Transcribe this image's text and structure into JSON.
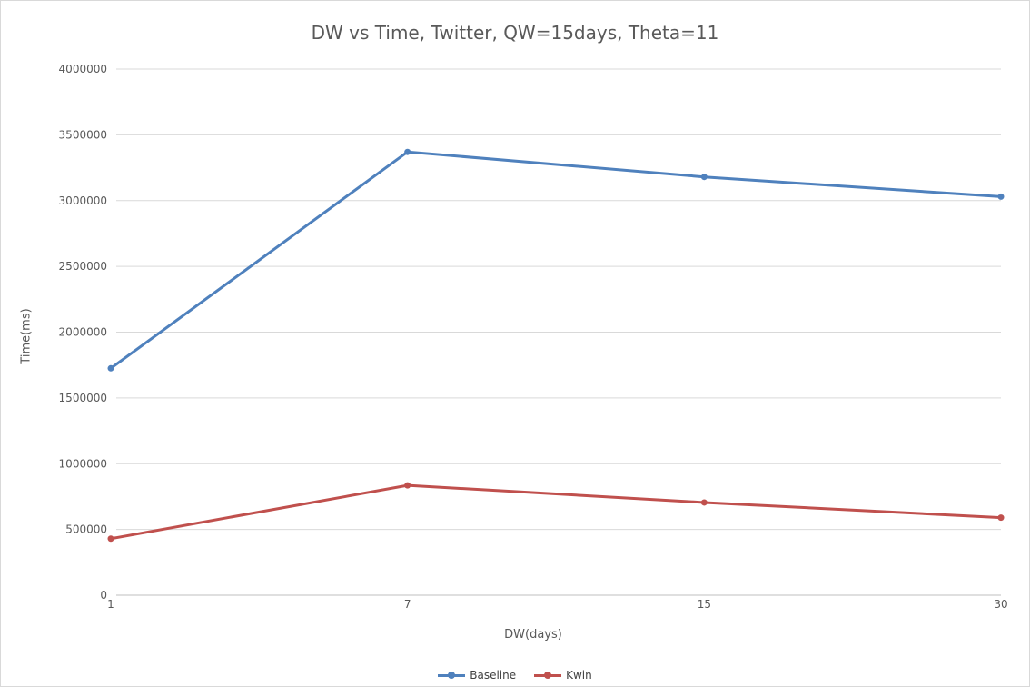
{
  "chart_data": {
    "type": "line",
    "title": "DW vs Time, Twitter, QW=15days, Theta=11",
    "xlabel": "DW(days)",
    "ylabel": "Time(ms)",
    "categories": [
      "1",
      "7",
      "15",
      "30"
    ],
    "ylim": [
      0,
      4000000
    ],
    "yticks": [
      "0",
      "500000",
      "1000000",
      "1500000",
      "2000000",
      "2500000",
      "3000000",
      "3500000",
      "4000000"
    ],
    "grid": true,
    "legend_position": "bottom",
    "series": [
      {
        "name": "Baseline",
        "color": "#4f81bd",
        "values": [
          1725000,
          3370000,
          3180000,
          3030000
        ]
      },
      {
        "name": "Kwin",
        "color": "#c0504d",
        "values": [
          430000,
          835000,
          705000,
          590000
        ]
      }
    ]
  }
}
